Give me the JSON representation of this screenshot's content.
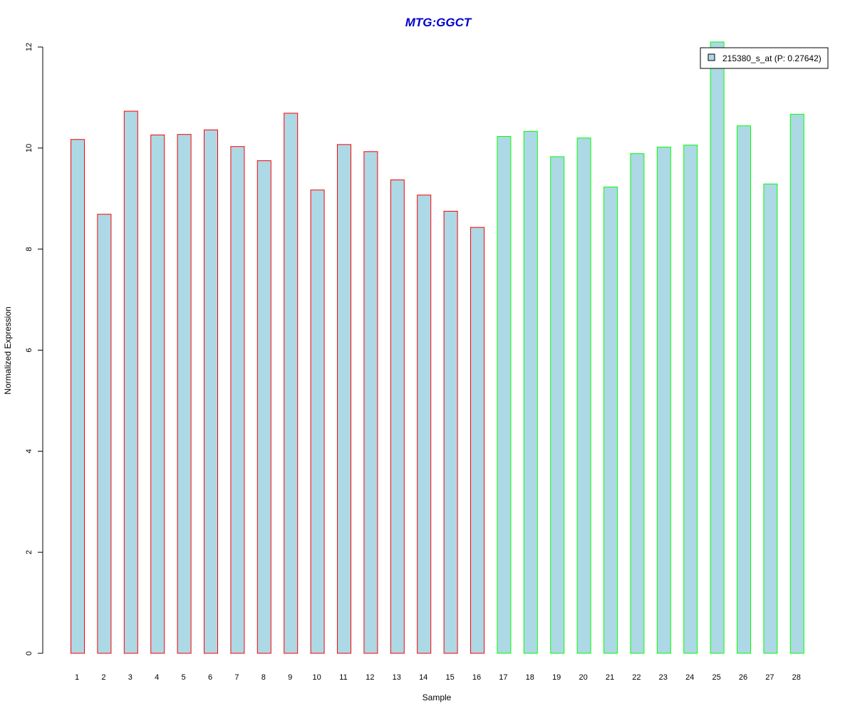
{
  "chart_data": {
    "type": "bar",
    "title": "MTG:GGCT",
    "xlabel": "Sample",
    "ylabel": "Normalized Expression",
    "categories": [
      "1",
      "2",
      "3",
      "4",
      "5",
      "6",
      "7",
      "8",
      "9",
      "10",
      "11",
      "12",
      "13",
      "14",
      "15",
      "16",
      "17",
      "18",
      "19",
      "20",
      "21",
      "22",
      "23",
      "24",
      "25",
      "26",
      "27",
      "28"
    ],
    "values": [
      10.17,
      8.69,
      10.73,
      10.26,
      10.27,
      10.36,
      10.03,
      9.75,
      10.69,
      9.17,
      10.07,
      9.93,
      9.37,
      9.07,
      8.75,
      8.43,
      10.23,
      10.33,
      9.83,
      10.2,
      9.23,
      9.89,
      10.02,
      10.06,
      12.1,
      10.44,
      9.29,
      10.67
    ],
    "group_sizes": [
      16,
      12
    ],
    "ylim": [
      0,
      12
    ],
    "yticks": [
      0,
      2,
      4,
      6,
      8,
      10,
      12
    ],
    "legend": {
      "label": "215380_s_at (P: 0.27642)",
      "position": "top-right"
    },
    "grid": false,
    "colors": {
      "bar_fill": "#add8e6",
      "group1_border": "#ff0000",
      "group2_border": "#00ff00",
      "title": "#0000cc",
      "axis": "#000000"
    }
  }
}
